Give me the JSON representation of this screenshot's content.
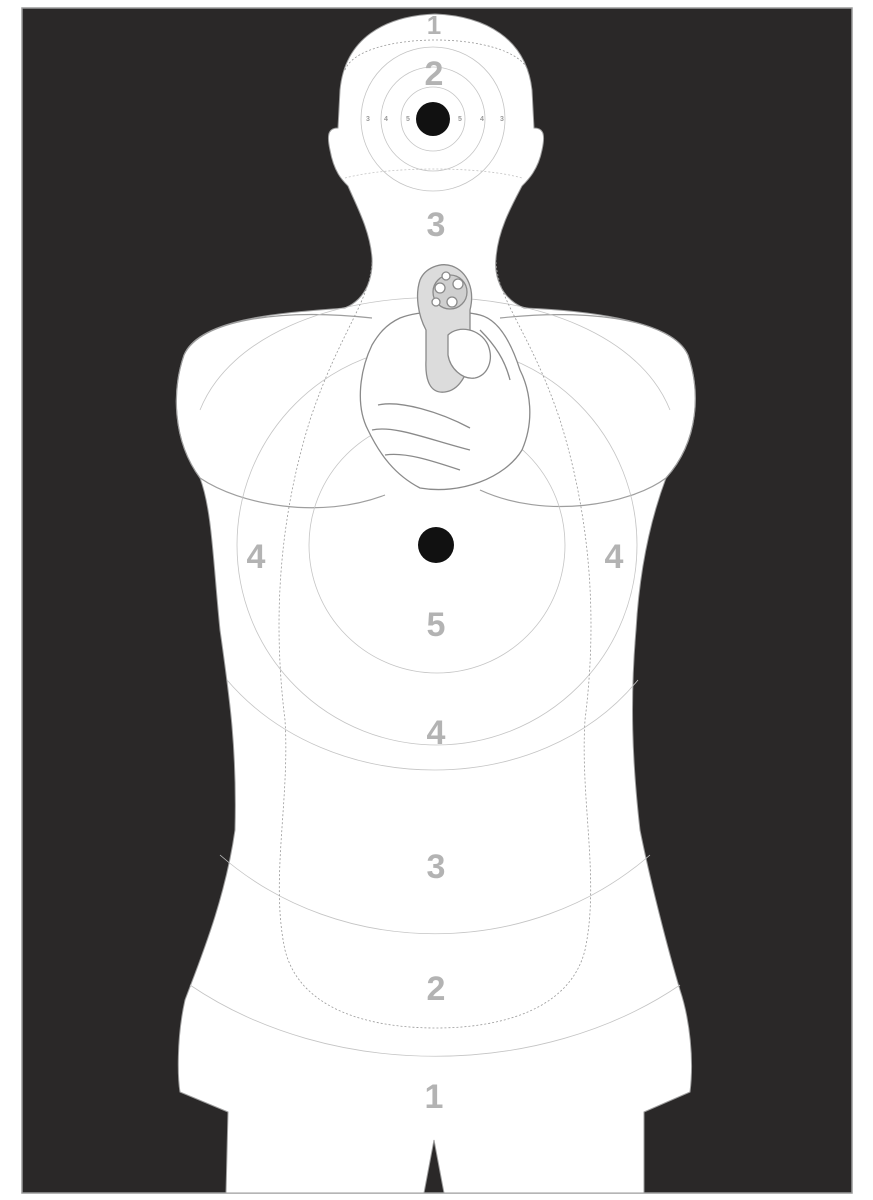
{
  "colors": {
    "frame_border": "#9a9a9a",
    "background": "#2a2828",
    "silhouette": "#ffffff",
    "outline": "#9e9e9e",
    "zone_lines": "#b8b8b8",
    "score_text": "#b3b3b3",
    "aim_point": "#111111",
    "revolver": "#d8d8d8"
  },
  "head_zone": {
    "top_label": "1",
    "ring_label": "2",
    "ring_numbers_left": [
      "3",
      "4",
      "5"
    ],
    "ring_numbers_right": [
      "5",
      "4",
      "3"
    ]
  },
  "neck_label": "3",
  "body_labels": {
    "left_side": "4",
    "right_side": "4",
    "center_ring": "5",
    "upper_torso": "4",
    "mid_torso": "3",
    "lower_torso": "2",
    "hips": "1"
  },
  "icons": {
    "weapon": "revolver-in-hand-icon",
    "head_aim": "aim-point-icon",
    "chest_aim": "aim-point-icon"
  }
}
